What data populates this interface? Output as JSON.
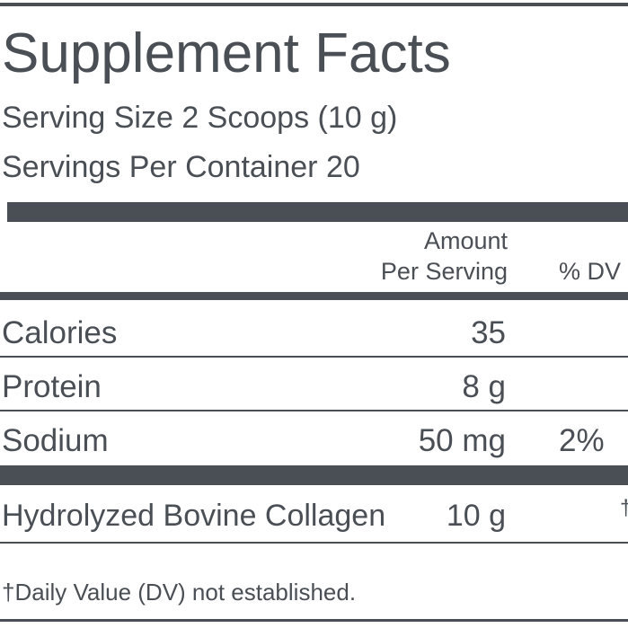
{
  "header": {
    "title": "Supplement Facts",
    "serving_size": "Serving Size 2 Scoops (10 g)",
    "servings_per_container": "Servings Per Container 20"
  },
  "table": {
    "columns": {
      "amount_line1": "Amount",
      "amount_line2": "Per Serving",
      "dv": "% DV"
    },
    "rows": [
      [
        "Calories",
        "35",
        ""
      ],
      [
        "Protein",
        "8 g",
        ""
      ],
      [
        "Sodium",
        "50 mg",
        "2%"
      ]
    ],
    "ingredients": [
      [
        "Hydrolyzed Bovine Collagen",
        "10 g",
        "†"
      ]
    ]
  },
  "footnote": "†Daily Value (DV) not established."
}
